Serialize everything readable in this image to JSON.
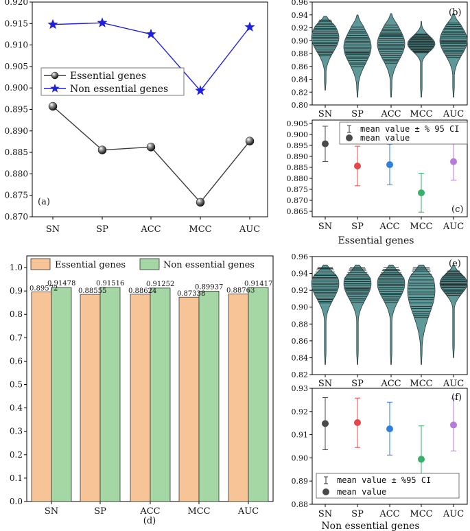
{
  "colors": {
    "essential": "#3a3a3a",
    "non_essential": "#1f1fe0",
    "violin": "#5f9898",
    "bar_essential": "#f7c497",
    "bar_non_essential": "#a4d7a4",
    "ci_colors": [
      "#4a4a4a",
      "#e4474a",
      "#2f7fdc",
      "#34b16a",
      "#b77ad9"
    ]
  },
  "captions": {
    "essential_genes": "Essential genes",
    "non_essential_genes": "Non essential genes"
  },
  "chart_data": [
    {
      "id": "a",
      "panel_label": "(a)",
      "type": "line",
      "categories": [
        "SN",
        "SP",
        "ACC",
        "MCC",
        "AUC"
      ],
      "series": [
        {
          "name": "Essential genes",
          "marker": "sphere",
          "values": [
            0.89572,
            0.88555,
            0.88624,
            0.87338,
            0.88763
          ]
        },
        {
          "name": "Non essential genes",
          "marker": "star",
          "values": [
            0.91478,
            0.91516,
            0.91252,
            0.89937,
            0.91417
          ]
        }
      ],
      "ylim": [
        0.87,
        0.92
      ],
      "yticks": [
        "0.870",
        "0.875",
        "0.880",
        "0.885",
        "0.890",
        "0.895",
        "0.900",
        "0.905",
        "0.910",
        "0.915",
        "0.920"
      ],
      "legend": "middle-left"
    },
    {
      "id": "b",
      "panel_label": "(b)",
      "type": "violin",
      "categories": [
        "SN",
        "SP",
        "ACC",
        "MCC",
        "AUC"
      ],
      "ylim": [
        0.8,
        0.96
      ],
      "yticks": [
        "0.80",
        "0.82",
        "0.84",
        "0.86",
        "0.88",
        "0.90",
        "0.92",
        "0.94",
        "0.96"
      ],
      "distributions": [
        {
          "min": 0.823,
          "max": 0.938,
          "center": 0.905,
          "spread": 0.022
        },
        {
          "min": 0.812,
          "max": 0.94,
          "center": 0.89,
          "spread": 0.025
        },
        {
          "min": 0.812,
          "max": 0.942,
          "center": 0.895,
          "spread": 0.024
        },
        {
          "min": 0.812,
          "max": 0.93,
          "center": 0.895,
          "spread": 0.012
        },
        {
          "min": 0.812,
          "max": 0.942,
          "center": 0.9,
          "spread": 0.022
        }
      ]
    },
    {
      "id": "c",
      "panel_label": "(c)",
      "type": "errorbar",
      "title": "Essential genes",
      "categories": [
        "SN",
        "SP",
        "ACC",
        "MCC",
        "AUC"
      ],
      "means": [
        0.8957,
        0.8856,
        0.8862,
        0.8734,
        0.8876
      ],
      "ci_low": [
        0.8876,
        0.8766,
        0.877,
        0.8646,
        0.8792
      ],
      "ci_high": [
        0.9037,
        0.8946,
        0.8955,
        0.8823,
        0.8962
      ],
      "ylim": [
        0.8625,
        0.9065
      ],
      "yticks": [
        "0.865",
        "0.870",
        "0.875",
        "0.880",
        "0.885",
        "0.890",
        "0.895",
        "0.900",
        "0.905"
      ],
      "legend": [
        "mean value ± % 95 CI",
        "mean value"
      ]
    },
    {
      "id": "d",
      "panel_label": "(d)",
      "type": "bar",
      "categories": [
        "SN",
        "SP",
        "ACC",
        "MCC",
        "AUC"
      ],
      "series": [
        {
          "name": "Essential genes",
          "values": [
            0.89572,
            0.88555,
            0.88624,
            0.87338,
            0.88763
          ],
          "labels": [
            "0.89572",
            "0.88555",
            "0.88624",
            "0.87338",
            "0.88763"
          ]
        },
        {
          "name": "Non essential genes",
          "values": [
            0.91478,
            0.91516,
            0.91252,
            0.89937,
            0.91417
          ],
          "labels": [
            "0.91478",
            "0.91516",
            "0.91252",
            "0.89937",
            "0.91417"
          ]
        }
      ],
      "ylim": [
        0,
        1.05
      ],
      "yticks": [
        "0.0",
        "0.1",
        "0.2",
        "0.3",
        "0.4",
        "0.5",
        "0.6",
        "0.7",
        "0.8",
        "0.9",
        "1.0"
      ],
      "legend": "top"
    },
    {
      "id": "e",
      "panel_label": "(e)",
      "type": "violin",
      "categories": [
        "SN",
        "SP",
        "ACC",
        "MCC",
        "AUC"
      ],
      "ylim": [
        0.82,
        0.96
      ],
      "yticks": [
        "0.82",
        "0.84",
        "0.86",
        "0.88",
        "0.90",
        "0.92",
        "0.94",
        "0.96"
      ],
      "distributions": [
        {
          "min": 0.832,
          "max": 0.95,
          "center": 0.928,
          "spread": 0.018
        },
        {
          "min": 0.832,
          "max": 0.95,
          "center": 0.928,
          "spread": 0.018
        },
        {
          "min": 0.832,
          "max": 0.95,
          "center": 0.928,
          "spread": 0.018
        },
        {
          "min": 0.832,
          "max": 0.95,
          "center": 0.92,
          "spread": 0.028
        },
        {
          "min": 0.84,
          "max": 0.95,
          "center": 0.928,
          "spread": 0.012
        }
      ]
    },
    {
      "id": "f",
      "panel_label": "(f)",
      "type": "errorbar",
      "title": "Non essential genes",
      "categories": [
        "SN",
        "SP",
        "ACC",
        "MCC",
        "AUC"
      ],
      "means": [
        0.9148,
        0.9152,
        0.9125,
        0.8994,
        0.9142
      ],
      "ci_low": [
        0.9035,
        0.9045,
        0.9012,
        0.887,
        0.903
      ],
      "ci_high": [
        0.926,
        0.9258,
        0.924,
        0.9138,
        0.9255
      ],
      "ylim": [
        0.88,
        0.93
      ],
      "yticks": [
        "0.88",
        "0.89",
        "0.90",
        "0.91",
        "0.92",
        "0.93"
      ],
      "legend": [
        "mean value ± %95 CI",
        "mean value"
      ]
    }
  ]
}
